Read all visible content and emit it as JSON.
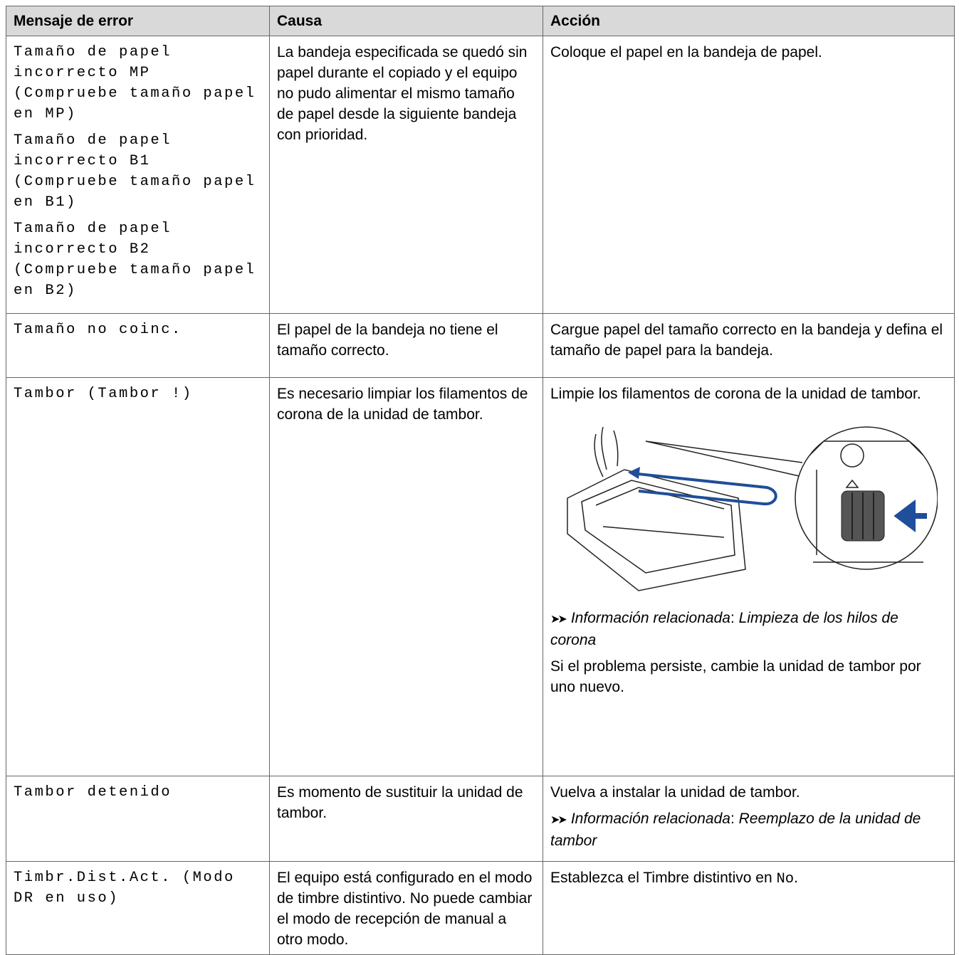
{
  "table": {
    "header": [
      "Mensaje de error",
      "Causa",
      "Acción"
    ],
    "rows": [
      {
        "error": [
          "Tamaño de papel incorrecto MP (Compruebe tamaño papel en MP)",
          "Tamaño de papel incorrecto B1 (Compruebe tamaño papel en B1)",
          "Tamaño de papel incorrecto B2 (Compruebe tamaño papel en B2)"
        ],
        "cause": "La bandeja especificada se quedó sin papel durante el copiado y el equipo no pudo alimentar el mismo tamaño de papel desde la siguiente bandeja con prioridad.",
        "action": [
          "Coloque el papel en la bandeja de papel."
        ]
      },
      {
        "error": [
          "Tamaño no coinc."
        ],
        "cause": "El papel de la bandeja no tiene el tamaño correcto.",
        "action": [
          "Cargue papel del tamaño correcto en la bandeja y defina el tamaño de papel para la bandeja."
        ]
      },
      {
        "error": [
          "Tambor (Tambor !)"
        ],
        "cause": "Es necesario limpiar los filamentos de corona de la unidad de tambor.",
        "action": [
          "Limpie los filamentos de corona de la unidad de tambor.",
          {
            "label": "Información relacionada",
            "separator": ":",
            "link": "Limpieza de los hilos de corona"
          },
          "Si el problema persiste, cambie la unidad de tambor por uno nuevo."
        ]
      },
      {
        "error": [
          "Tambor detenido"
        ],
        "cause": "Es momento de sustituir la unidad de tambor.",
        "action": [
          "Vuelva a instalar la unidad de tambor.",
          {
            "label": "Información relacionada",
            "separator": ":",
            "link": "Reemplazo de la unidad de tambor"
          }
        ]
      },
      {
        "error": [
          "Timbr.Dist.Act. (Modo DR en uso)"
        ],
        "cause": "El equipo está configurado en el modo de timbre distintivo. No puede cambiar el modo de recepción de manual a otro modo.",
        "action": [
          {
            "text": "Establezca el Timbre distintivo en ",
            "code": "No",
            "end": "."
          }
        ]
      }
    ]
  }
}
